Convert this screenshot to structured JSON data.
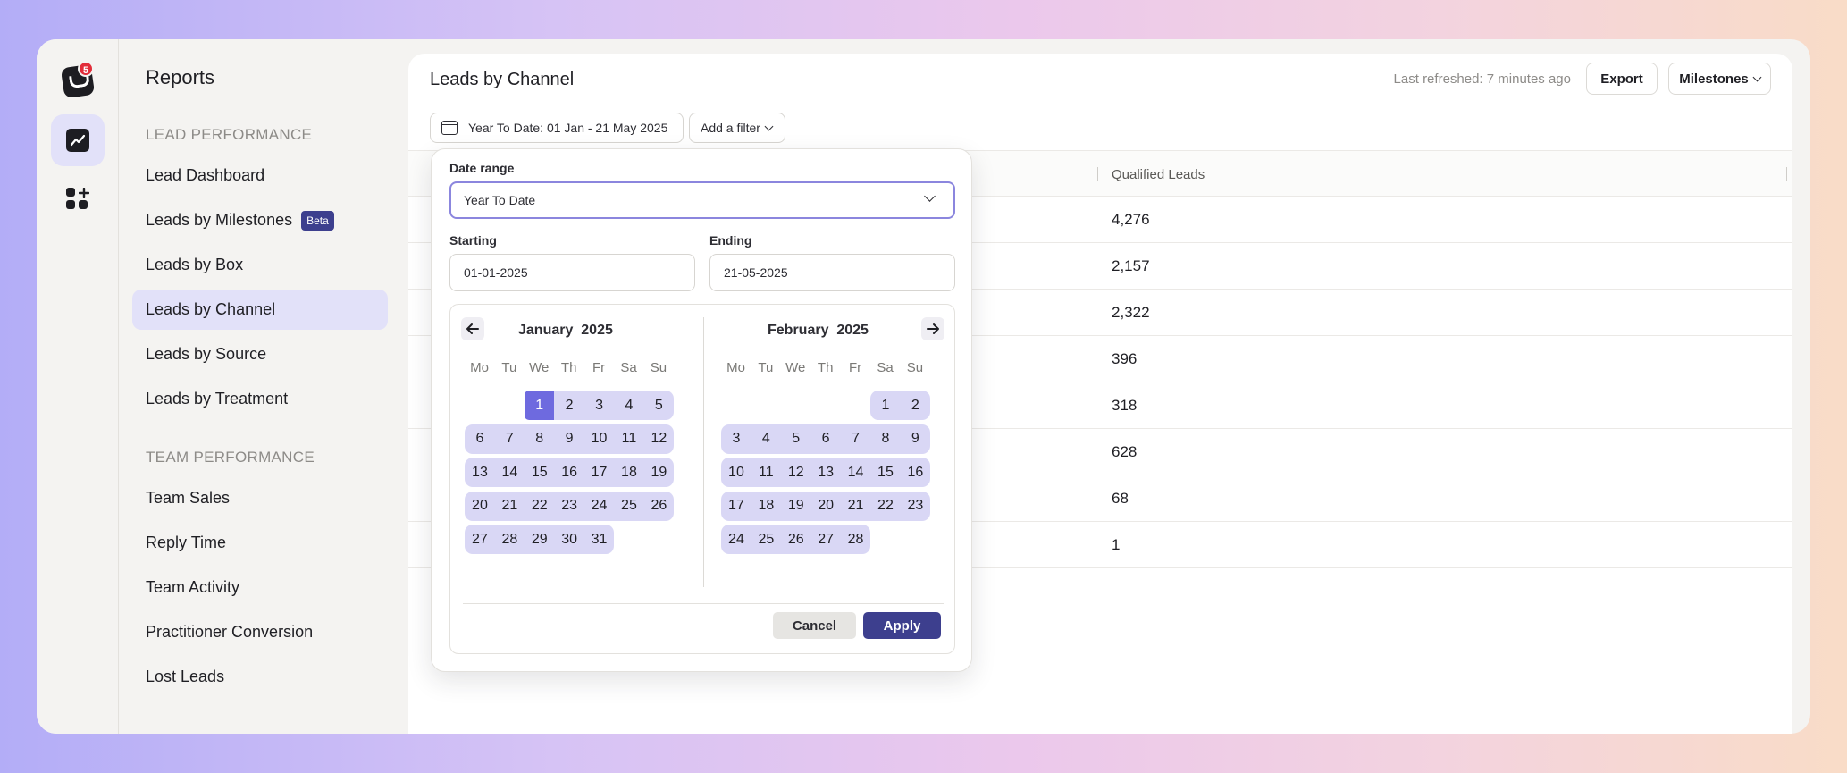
{
  "app": {
    "notification_count": "5",
    "accent": "#3d3f8e",
    "selection_color": "#6e6adf",
    "range_color": "#d9d7f5"
  },
  "sidebar": {
    "title": "Reports",
    "sections": [
      {
        "label": "LEAD PERFORMANCE",
        "items": [
          {
            "label": "Lead Dashboard"
          },
          {
            "label": "Leads by Milestones",
            "badge": "Beta"
          },
          {
            "label": "Leads by Box"
          },
          {
            "label": "Leads by Channel",
            "active": true
          },
          {
            "label": "Leads by Source"
          },
          {
            "label": "Leads by Treatment"
          }
        ]
      },
      {
        "label": "TEAM PERFORMANCE",
        "items": [
          {
            "label": "Team Sales"
          },
          {
            "label": "Reply Time"
          },
          {
            "label": "Team Activity"
          },
          {
            "label": "Practitioner Conversion"
          },
          {
            "label": "Lost Leads"
          }
        ]
      }
    ]
  },
  "header": {
    "title": "Leads by Channel",
    "last_refreshed": "Last refreshed: 7 minutes ago",
    "export_label": "Export",
    "milestones_label": "Milestones"
  },
  "filters": {
    "date_chip": "Year To Date: 01 Jan - 21 May 2025",
    "add_filter": "Add a filter"
  },
  "table": {
    "column_header": "Qualified Leads",
    "rows": [
      "4,276",
      "2,157",
      "2,322",
      "396",
      "318",
      "628",
      "68",
      "1"
    ]
  },
  "date_picker": {
    "range_label": "Date range",
    "range_value": "Year To Date",
    "starting_label": "Starting",
    "starting_value": "01-01-2025",
    "ending_label": "Ending",
    "ending_value": "21-05-2025",
    "weekdays": [
      "Mo",
      "Tu",
      "We",
      "Th",
      "Fr",
      "Sa",
      "Su"
    ],
    "months": [
      {
        "name": "January",
        "year": "2025",
        "start_col": 2,
        "days": 31,
        "selected_day": 1
      },
      {
        "name": "February",
        "year": "2025",
        "start_col": 5,
        "days": 28
      }
    ],
    "cancel_label": "Cancel",
    "apply_label": "Apply"
  }
}
